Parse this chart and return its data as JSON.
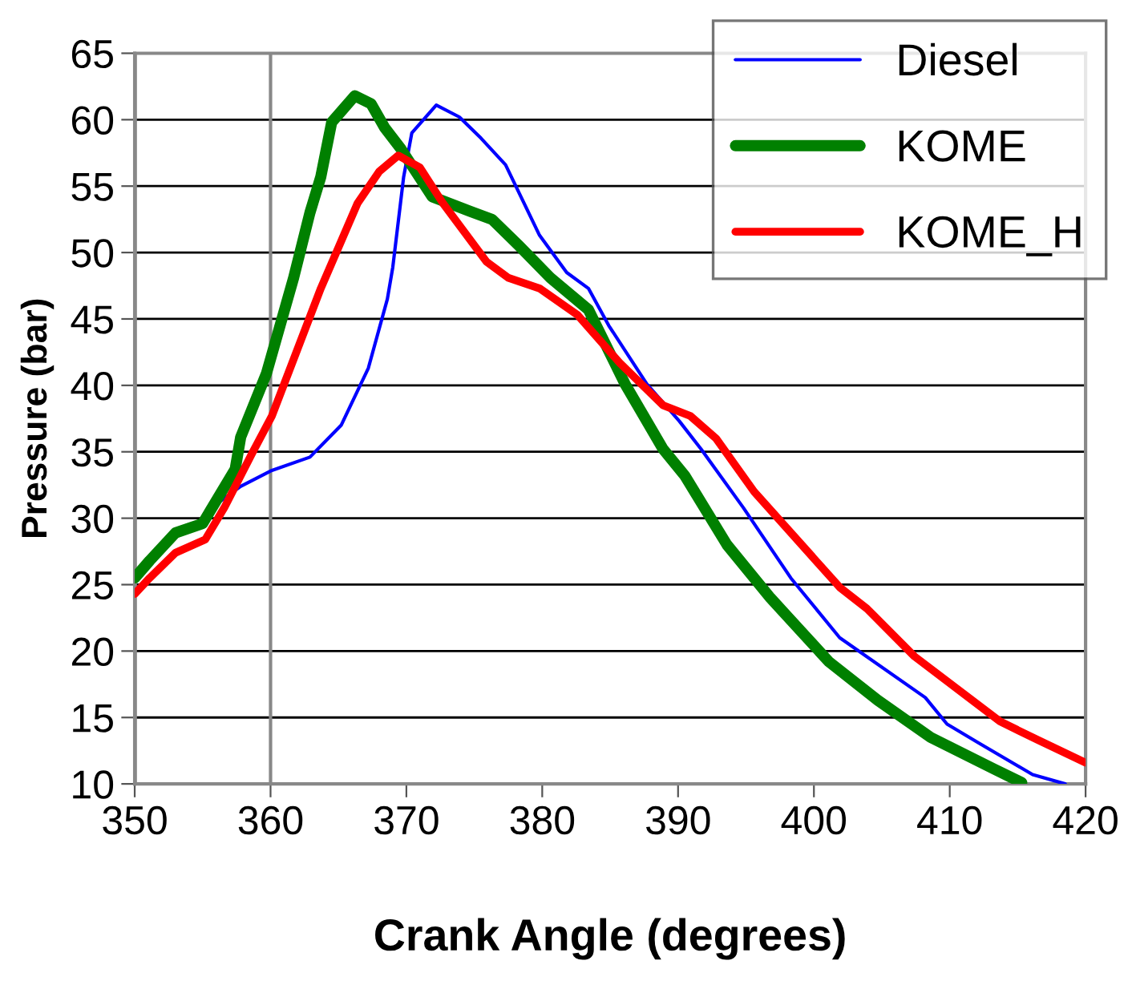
{
  "chart_data": {
    "type": "line",
    "xlabel": "Crank Angle (degrees)",
    "ylabel": "Pressure (bar)",
    "xlim": [
      350,
      420
    ],
    "xticks": [
      350,
      360,
      370,
      380,
      390,
      400,
      410,
      420
    ],
    "ylim": [
      10,
      65
    ],
    "yticks": [
      10,
      15,
      20,
      25,
      30,
      35,
      40,
      45,
      50,
      55,
      60,
      65
    ],
    "grid": "y",
    "ref_lines": [
      {
        "axis": "x",
        "value": 360,
        "color": "#888888"
      }
    ],
    "legend": "top right",
    "line_style": "solid",
    "marker": "none",
    "series": [
      {
        "name": "Diesel",
        "color": "#0000ff",
        "x": [
          356.2,
          357.8,
          360.1,
          362.9,
          365.2,
          367.2,
          368.6,
          369.0,
          369.8,
          370.4,
          372.2,
          373.9,
          375.5,
          377.3,
          379.8,
          381.8,
          383.4,
          384.9,
          387.7,
          390.1,
          391.7,
          394.8,
          398.3,
          401.9,
          408.2,
          409.8,
          412.1,
          416.1,
          418.5
        ],
        "values": [
          31.2,
          32.4,
          33.6,
          34.6,
          37.0,
          41.3,
          46.5,
          48.9,
          55.7,
          59.0,
          61.1,
          60.2,
          58.6,
          56.6,
          51.3,
          48.5,
          47.3,
          44.5,
          40.1,
          37.3,
          35.2,
          30.8,
          25.5,
          21.0,
          16.5,
          14.5,
          13.1,
          10.7,
          10.0
        ]
      },
      {
        "name": "KOME",
        "color": "#008000",
        "x": [
          350,
          351.1,
          353.0,
          355.0,
          357.4,
          357.8,
          359.7,
          361.7,
          362.9,
          363.7,
          364.5,
          366.2,
          367.4,
          368.4,
          369.6,
          371.9,
          374.7,
          376.3,
          378.3,
          380.6,
          383.4,
          386.1,
          388.9,
          390.5,
          393.6,
          396.8,
          401.1,
          404.7,
          408.6,
          413.3,
          415.3
        ],
        "values": [
          25.5,
          26.8,
          28.9,
          29.6,
          33.7,
          36.1,
          40.9,
          48.1,
          53.0,
          55.7,
          59.8,
          61.8,
          61.2,
          59.4,
          57.8,
          54.2,
          53.1,
          52.5,
          50.5,
          48.1,
          45.7,
          40.1,
          35.2,
          33.2,
          28.0,
          24.0,
          19.2,
          16.3,
          13.5,
          11.1,
          10.1
        ]
      },
      {
        "name": "KOME_H",
        "color": "#ff0000",
        "x": [
          350,
          351.1,
          353.0,
          355.2,
          356.6,
          358.6,
          360.1,
          363.7,
          366.4,
          368.0,
          369.4,
          371.0,
          372.7,
          375.9,
          377.5,
          379.8,
          382.6,
          385.7,
          388.9,
          390.9,
          392.8,
          395.6,
          401.9,
          403.9,
          407.4,
          413.7,
          416.5,
          420
        ],
        "values": [
          24.3,
          25.5,
          27.4,
          28.4,
          30.8,
          34.8,
          37.7,
          47.3,
          53.7,
          56.1,
          57.3,
          56.4,
          53.7,
          49.3,
          48.1,
          47.3,
          45.3,
          41.7,
          38.5,
          37.7,
          36.0,
          32.0,
          24.8,
          23.2,
          19.6,
          14.7,
          13.3,
          11.6
        ]
      }
    ]
  }
}
